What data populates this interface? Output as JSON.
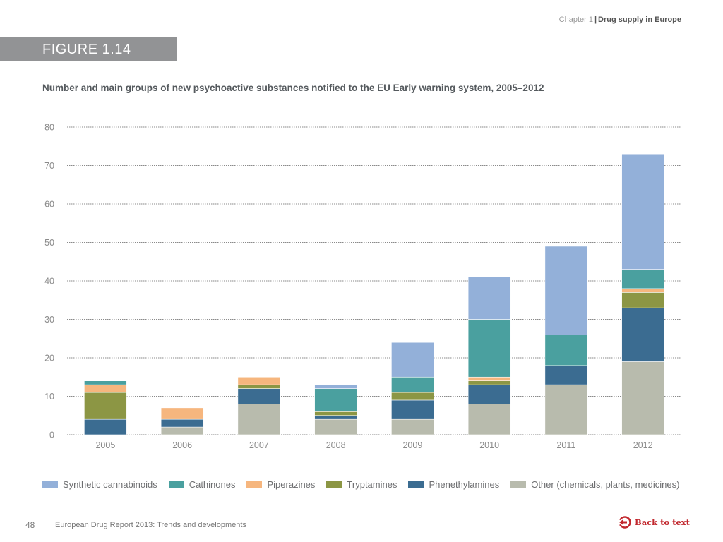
{
  "header": {
    "chapter_label": "Chapter 1",
    "section_label": "Drug supply in Europe"
  },
  "figure": {
    "label": "FIGURE 1.14"
  },
  "chart_data": {
    "type": "bar",
    "stacked": true,
    "title": "Number and main groups of new psychoactive substances notified to the EU Early warning system, 2005–2012",
    "xlabel": "",
    "ylabel": "",
    "ylim": [
      0,
      80
    ],
    "yticks": [
      0,
      10,
      20,
      30,
      40,
      50,
      60,
      70,
      80
    ],
    "grid": true,
    "legend_position": "bottom",
    "categories": [
      "2005",
      "2006",
      "2007",
      "2008",
      "2009",
      "2010",
      "2011",
      "2012"
    ],
    "series": [
      {
        "name": "Other (chemicals, plants, medicines)",
        "color": "#b8bbad",
        "values": [
          0,
          2,
          8,
          4,
          4,
          8,
          13,
          19
        ]
      },
      {
        "name": "Phenethylamines",
        "color": "#3b6c91",
        "values": [
          4,
          2,
          4,
          1,
          5,
          5,
          5,
          14
        ]
      },
      {
        "name": "Tryptamines",
        "color": "#8c9644",
        "values": [
          7,
          0,
          1,
          1,
          2,
          1,
          0,
          4
        ]
      },
      {
        "name": "Piperazines",
        "color": "#f6b67e",
        "values": [
          2,
          3,
          2,
          0,
          0,
          1,
          0,
          1
        ]
      },
      {
        "name": "Cathinones",
        "color": "#4aa09f",
        "values": [
          1,
          0,
          0,
          6,
          4,
          15,
          8,
          5
        ]
      },
      {
        "name": "Synthetic cannabinoids",
        "color": "#93b0d9",
        "values": [
          0,
          0,
          0,
          1,
          9,
          11,
          23,
          30
        ]
      }
    ],
    "totals": [
      14,
      7,
      15,
      13,
      24,
      41,
      49,
      73
    ],
    "legend_order": [
      "Synthetic cannabinoids",
      "Cathinones",
      "Piperazines",
      "Tryptamines",
      "Phenethylamines",
      "Other (chemicals, plants, medicines)"
    ]
  },
  "footer": {
    "page_number": "48",
    "publication_title": "European Drug Report 2013: Trends and developments",
    "back_link_label": "Back to text",
    "back_link_color": "#c1272d"
  }
}
